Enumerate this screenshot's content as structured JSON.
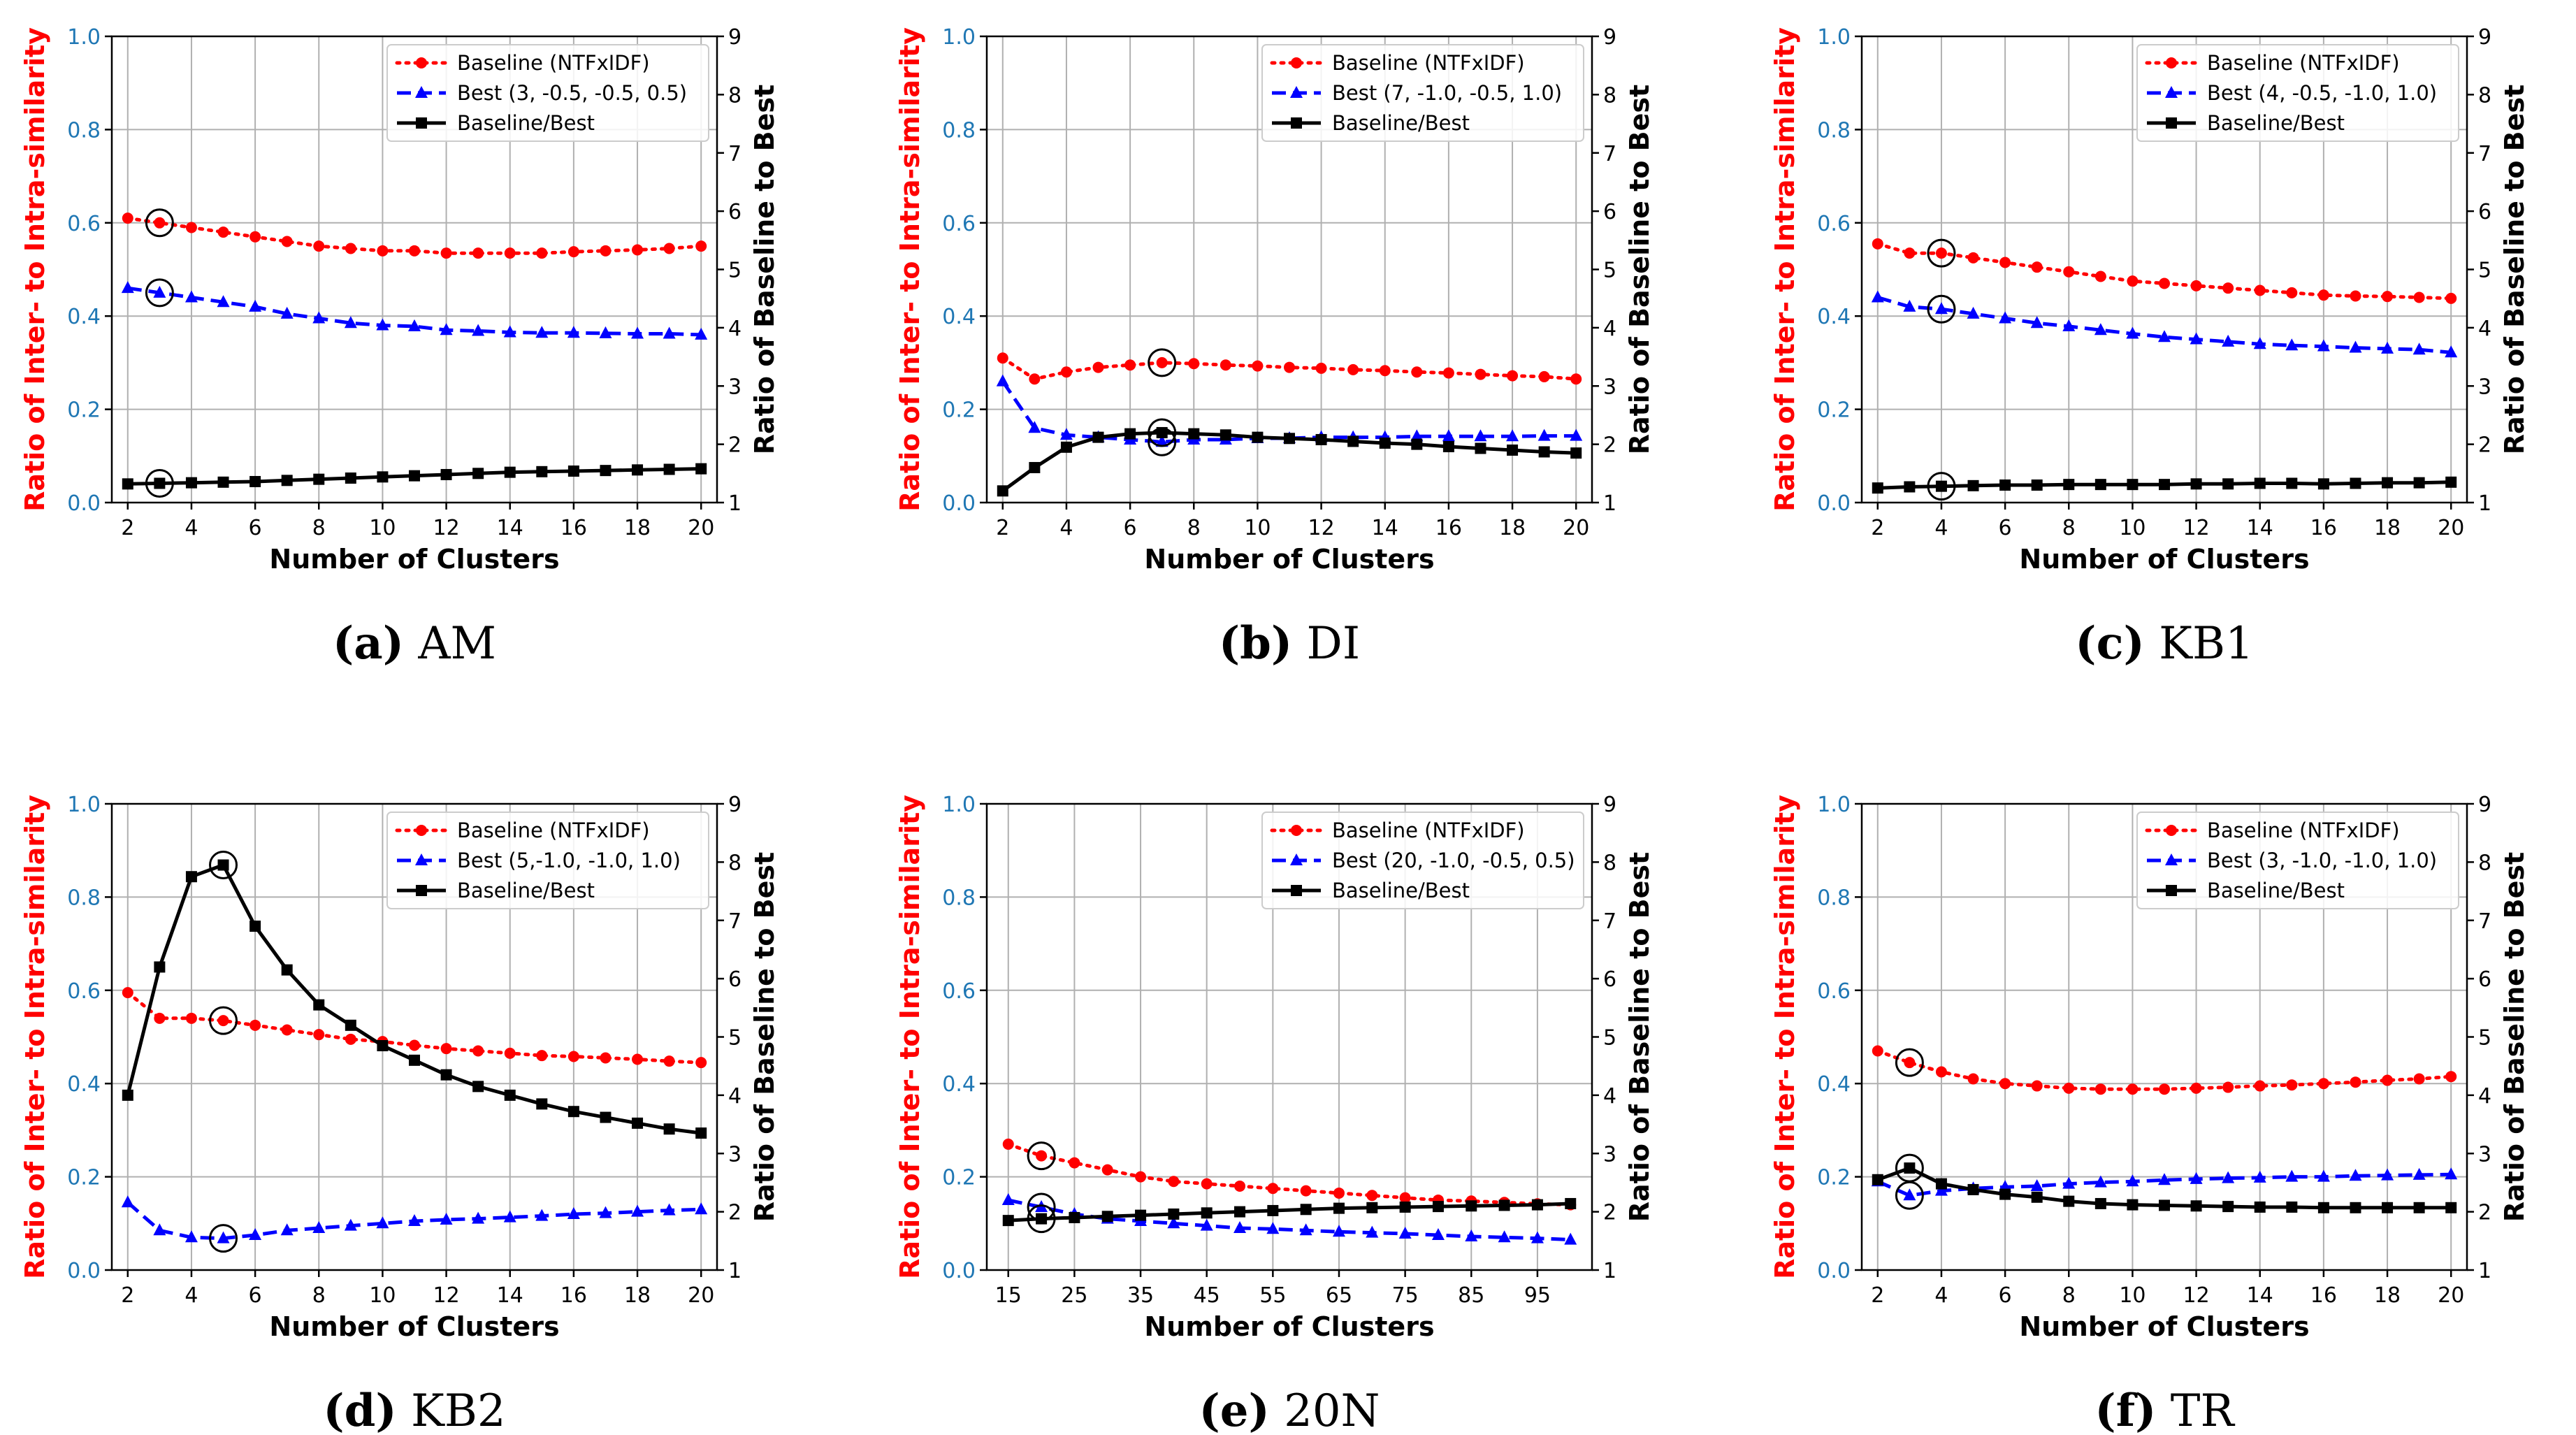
{
  "colors": {
    "baseline": "#ff0000",
    "best": "#0000ff",
    "ratio": "#000000",
    "left_axis": "#ff0000",
    "left_ticks": "#1f77b4",
    "grid": "#b0b0b0"
  },
  "chart_data": [
    {
      "type": "line",
      "caption_letter": "(a)",
      "caption_name": "AM",
      "xlabel": "Number of Clusters",
      "ylabel": "Ratio of Inter- to Intra-similarity",
      "y2label": "Ratio of Baseline to Best",
      "xlim": [
        1.5,
        20.5
      ],
      "ylim": [
        0,
        1.0
      ],
      "y2lim": [
        1,
        9
      ],
      "xticks": [
        2,
        4,
        6,
        8,
        10,
        12,
        14,
        16,
        18,
        20
      ],
      "yticks": [
        "0.0",
        "0.2",
        "0.4",
        "0.6",
        "0.8",
        "1.0"
      ],
      "y2ticks": [
        "1",
        "2",
        "3",
        "4",
        "5",
        "6",
        "7",
        "8",
        "9"
      ],
      "legend": [
        "Baseline (NTFxIDF)",
        "Best (3, -0.5, -0.5, 0.5)",
        "Baseline/Best"
      ],
      "x": [
        2,
        3,
        4,
        5,
        6,
        7,
        8,
        9,
        10,
        11,
        12,
        13,
        14,
        15,
        16,
        17,
        18,
        19,
        20
      ],
      "series": [
        {
          "values": [
            0.61,
            0.6,
            0.59,
            0.58,
            0.57,
            0.56,
            0.55,
            0.545,
            0.54,
            0.54,
            0.535,
            0.535,
            0.535,
            0.535,
            0.538,
            0.54,
            0.542,
            0.545,
            0.55
          ]
        },
        {
          "values": [
            0.46,
            0.45,
            0.44,
            0.43,
            0.42,
            0.405,
            0.395,
            0.385,
            0.38,
            0.378,
            0.37,
            0.368,
            0.365,
            0.364,
            0.364,
            0.363,
            0.362,
            0.362,
            0.36
          ]
        },
        {
          "values": [
            1.32,
            1.33,
            1.34,
            1.35,
            1.36,
            1.38,
            1.4,
            1.42,
            1.44,
            1.46,
            1.48,
            1.5,
            1.52,
            1.53,
            1.54,
            1.55,
            1.56,
            1.57,
            1.58
          ]
        }
      ],
      "highlight_x": 3
    },
    {
      "type": "line",
      "caption_letter": "(b)",
      "caption_name": "DI",
      "xlabel": "Number of Clusters",
      "ylabel": "Ratio of Inter- to Intra-similarity",
      "y2label": "Ratio of Baseline to Best",
      "xlim": [
        1.5,
        20.5
      ],
      "ylim": [
        0,
        1.0
      ],
      "y2lim": [
        1,
        9
      ],
      "xticks": [
        2,
        4,
        6,
        8,
        10,
        12,
        14,
        16,
        18,
        20
      ],
      "yticks": [
        "0.0",
        "0.2",
        "0.4",
        "0.6",
        "0.8",
        "1.0"
      ],
      "y2ticks": [
        "1",
        "2",
        "3",
        "4",
        "5",
        "6",
        "7",
        "8",
        "9"
      ],
      "legend": [
        "Baseline (NTFxIDF)",
        "Best (7, -1.0, -0.5, 1.0)",
        "Baseline/Best"
      ],
      "x": [
        2,
        3,
        4,
        5,
        6,
        7,
        8,
        9,
        10,
        11,
        12,
        13,
        14,
        15,
        16,
        17,
        18,
        19,
        20
      ],
      "series": [
        {
          "values": [
            0.31,
            0.265,
            0.28,
            0.29,
            0.295,
            0.3,
            0.298,
            0.295,
            0.293,
            0.29,
            0.288,
            0.285,
            0.283,
            0.28,
            0.278,
            0.275,
            0.272,
            0.27,
            0.265
          ]
        },
        {
          "values": [
            0.26,
            0.16,
            0.145,
            0.14,
            0.135,
            0.13,
            0.135,
            0.135,
            0.138,
            0.138,
            0.14,
            0.14,
            0.14,
            0.142,
            0.142,
            0.142,
            0.142,
            0.143,
            0.143
          ]
        },
        {
          "values": [
            1.2,
            1.6,
            1.95,
            2.12,
            2.18,
            2.2,
            2.18,
            2.16,
            2.12,
            2.1,
            2.08,
            2.05,
            2.02,
            2.0,
            1.96,
            1.93,
            1.9,
            1.87,
            1.85
          ]
        }
      ],
      "highlight_x": 7
    },
    {
      "type": "line",
      "caption_letter": "(c)",
      "caption_name": "KB1",
      "xlabel": "Number of Clusters",
      "ylabel": "Ratio of Inter- to Intra-similarity",
      "y2label": "Ratio of Baseline to Best",
      "xlim": [
        1.5,
        20.5
      ],
      "ylim": [
        0,
        1.0
      ],
      "y2lim": [
        1,
        9
      ],
      "xticks": [
        2,
        4,
        6,
        8,
        10,
        12,
        14,
        16,
        18,
        20
      ],
      "yticks": [
        "0.0",
        "0.2",
        "0.4",
        "0.6",
        "0.8",
        "1.0"
      ],
      "y2ticks": [
        "1",
        "2",
        "3",
        "4",
        "5",
        "6",
        "7",
        "8",
        "9"
      ],
      "legend": [
        "Baseline (NTFxIDF)",
        "Best (4, -0.5, -1.0, 1.0)",
        "Baseline/Best"
      ],
      "x": [
        2,
        3,
        4,
        5,
        6,
        7,
        8,
        9,
        10,
        11,
        12,
        13,
        14,
        15,
        16,
        17,
        18,
        19,
        20
      ],
      "series": [
        {
          "values": [
            0.555,
            0.535,
            0.535,
            0.525,
            0.515,
            0.505,
            0.495,
            0.485,
            0.475,
            0.47,
            0.465,
            0.46,
            0.455,
            0.45,
            0.445,
            0.443,
            0.442,
            0.44,
            0.438
          ]
        },
        {
          "values": [
            0.44,
            0.42,
            0.415,
            0.405,
            0.395,
            0.385,
            0.378,
            0.37,
            0.362,
            0.355,
            0.35,
            0.345,
            0.34,
            0.337,
            0.335,
            0.332,
            0.33,
            0.328,
            0.322
          ]
        },
        {
          "values": [
            1.25,
            1.27,
            1.28,
            1.29,
            1.3,
            1.3,
            1.31,
            1.31,
            1.31,
            1.31,
            1.32,
            1.32,
            1.33,
            1.33,
            1.32,
            1.33,
            1.34,
            1.34,
            1.35
          ]
        }
      ],
      "highlight_x": 4
    },
    {
      "type": "line",
      "caption_letter": "(d)",
      "caption_name": "KB2",
      "xlabel": "Number of Clusters",
      "ylabel": "Ratio of Inter- to Intra-similarity",
      "y2label": "Ratio of Baseline to Best",
      "xlim": [
        1.5,
        20.5
      ],
      "ylim": [
        0,
        1.0
      ],
      "y2lim": [
        1,
        9
      ],
      "xticks": [
        2,
        4,
        6,
        8,
        10,
        12,
        14,
        16,
        18,
        20
      ],
      "yticks": [
        "0.0",
        "0.2",
        "0.4",
        "0.6",
        "0.8",
        "1.0"
      ],
      "y2ticks": [
        "1",
        "2",
        "3",
        "4",
        "5",
        "6",
        "7",
        "8",
        "9"
      ],
      "legend": [
        "Baseline (NTFxIDF)",
        "Best (5,-1.0, -1.0, 1.0)",
        "Baseline/Best"
      ],
      "x": [
        2,
        3,
        4,
        5,
        6,
        7,
        8,
        9,
        10,
        11,
        12,
        13,
        14,
        15,
        16,
        17,
        18,
        19,
        20
      ],
      "series": [
        {
          "values": [
            0.595,
            0.54,
            0.54,
            0.535,
            0.525,
            0.515,
            0.505,
            0.495,
            0.49,
            0.482,
            0.475,
            0.47,
            0.465,
            0.46,
            0.458,
            0.455,
            0.452,
            0.448,
            0.445
          ]
        },
        {
          "values": [
            0.145,
            0.085,
            0.07,
            0.068,
            0.075,
            0.085,
            0.09,
            0.095,
            0.1,
            0.105,
            0.108,
            0.11,
            0.113,
            0.116,
            0.12,
            0.122,
            0.125,
            0.128,
            0.13
          ]
        },
        {
          "values": [
            4.0,
            6.2,
            7.75,
            7.95,
            6.9,
            6.15,
            5.55,
            5.2,
            4.85,
            4.6,
            4.35,
            4.15,
            4.0,
            3.85,
            3.72,
            3.62,
            3.52,
            3.42,
            3.35
          ]
        }
      ],
      "highlight_x": 5
    },
    {
      "type": "line",
      "caption_letter": "(e)",
      "caption_name": "20N",
      "xlabel": "Number of Clusters",
      "ylabel": "Ratio of Inter- to Intra-similarity",
      "y2label": "Ratio of Baseline to Best",
      "xlim": [
        11.75,
        103.25
      ],
      "ylim": [
        0,
        1.0
      ],
      "y2lim": [
        1,
        9
      ],
      "xticks": [
        15,
        25,
        35,
        45,
        55,
        65,
        75,
        85,
        95
      ],
      "yticks": [
        "0.0",
        "0.2",
        "0.4",
        "0.6",
        "0.8",
        "1.0"
      ],
      "y2ticks": [
        "1",
        "2",
        "3",
        "4",
        "5",
        "6",
        "7",
        "8",
        "9"
      ],
      "legend": [
        "Baseline (NTFxIDF)",
        "Best (20, -1.0, -0.5, 0.5)",
        "Baseline/Best"
      ],
      "x": [
        15,
        20,
        25,
        30,
        35,
        40,
        45,
        50,
        55,
        60,
        65,
        70,
        75,
        80,
        85,
        90,
        95,
        100
      ],
      "series": [
        {
          "values": [
            0.27,
            0.245,
            0.23,
            0.215,
            0.2,
            0.19,
            0.185,
            0.18,
            0.175,
            0.17,
            0.165,
            0.16,
            0.155,
            0.15,
            0.148,
            0.145,
            0.142,
            0.14
          ]
        },
        {
          "values": [
            0.15,
            0.135,
            0.12,
            0.11,
            0.105,
            0.1,
            0.095,
            0.09,
            0.088,
            0.085,
            0.082,
            0.08,
            0.078,
            0.075,
            0.072,
            0.07,
            0.068,
            0.065
          ]
        },
        {
          "values": [
            1.85,
            1.88,
            1.9,
            1.92,
            1.94,
            1.96,
            1.98,
            2.0,
            2.02,
            2.04,
            2.06,
            2.07,
            2.08,
            2.09,
            2.1,
            2.11,
            2.12,
            2.14
          ]
        }
      ],
      "highlight_x": 20
    },
    {
      "type": "line",
      "caption_letter": "(f)",
      "caption_name": "TR",
      "xlabel": "Number of Clusters",
      "ylabel": "Ratio of Inter- to Intra-similarity",
      "y2label": "Ratio of Baseline to Best",
      "xlim": [
        1.5,
        20.5
      ],
      "ylim": [
        0,
        1.0
      ],
      "y2lim": [
        1,
        9
      ],
      "xticks": [
        2,
        4,
        6,
        8,
        10,
        12,
        14,
        16,
        18,
        20
      ],
      "yticks": [
        "0.0",
        "0.2",
        "0.4",
        "0.6",
        "0.8",
        "1.0"
      ],
      "y2ticks": [
        "1",
        "2",
        "3",
        "4",
        "5",
        "6",
        "7",
        "8",
        "9"
      ],
      "legend": [
        "Baseline (NTFxIDF)",
        "Best (3, -1.0, -1.0, 1.0)",
        "Baseline/Best"
      ],
      "x": [
        2,
        3,
        4,
        5,
        6,
        7,
        8,
        9,
        10,
        11,
        12,
        13,
        14,
        15,
        16,
        17,
        18,
        19,
        20
      ],
      "series": [
        {
          "values": [
            0.47,
            0.445,
            0.425,
            0.41,
            0.4,
            0.395,
            0.39,
            0.388,
            0.388,
            0.388,
            0.39,
            0.392,
            0.395,
            0.397,
            0.4,
            0.403,
            0.407,
            0.41,
            0.415
          ]
        },
        {
          "values": [
            0.19,
            0.16,
            0.17,
            0.175,
            0.178,
            0.18,
            0.185,
            0.188,
            0.19,
            0.193,
            0.195,
            0.197,
            0.198,
            0.2,
            0.2,
            0.202,
            0.203,
            0.204,
            0.205
          ]
        },
        {
          "values": [
            2.55,
            2.75,
            2.48,
            2.38,
            2.3,
            2.25,
            2.18,
            2.14,
            2.12,
            2.11,
            2.1,
            2.09,
            2.08,
            2.08,
            2.07,
            2.07,
            2.07,
            2.07,
            2.07
          ]
        }
      ],
      "highlight_x": 3
    }
  ]
}
